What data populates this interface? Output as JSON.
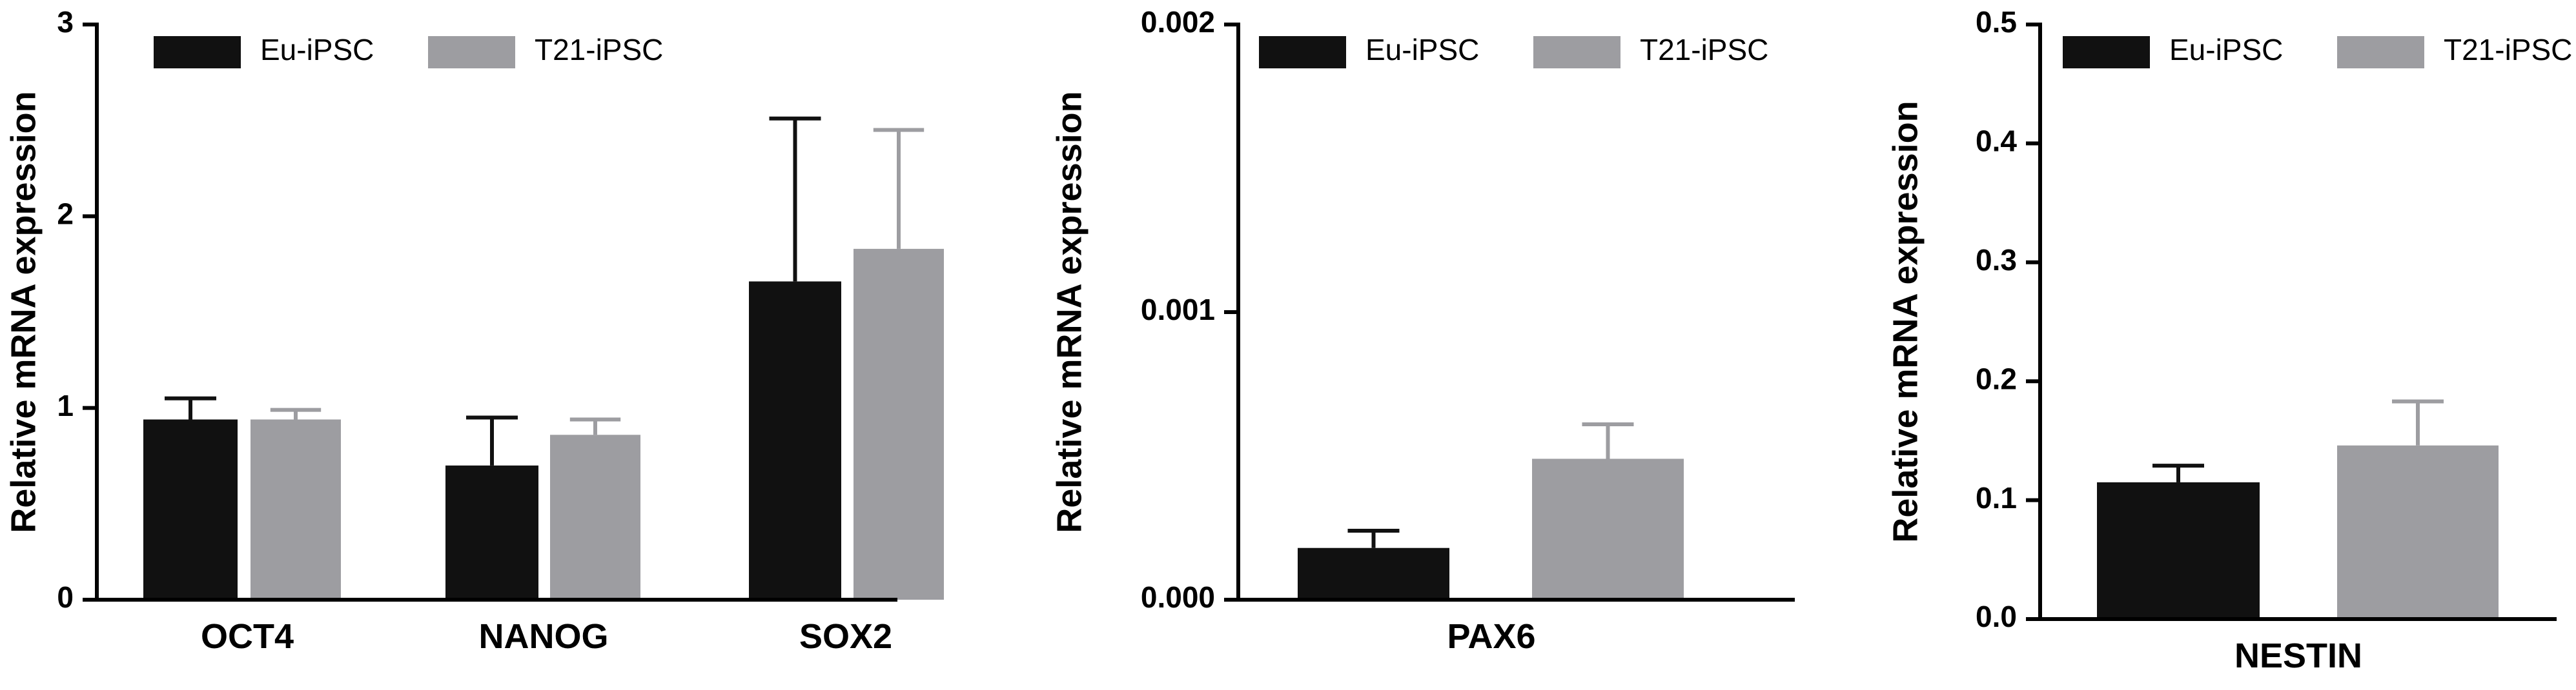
{
  "chart_data": [
    {
      "type": "bar",
      "ylabel": "Relative mRNA expression",
      "ylim": [
        0,
        3
      ],
      "yticks": [
        "0",
        "1",
        "2",
        "3"
      ],
      "categories": [
        "OCT4",
        "NANOG",
        "SOX2"
      ],
      "series": [
        {
          "name": "Eu-iPSC",
          "color": "#111111",
          "values": [
            0.94,
            0.7,
            1.66
          ],
          "errors": [
            0.11,
            0.25,
            0.85
          ]
        },
        {
          "name": "T21-iPSC",
          "color": "#9d9da1",
          "values": [
            0.94,
            0.86,
            1.83
          ],
          "errors": [
            0.05,
            0.08,
            0.62
          ]
        }
      ],
      "legend": "top-left"
    },
    {
      "type": "bar",
      "ylabel": "Relative mRNA expression",
      "ylim": [
        0,
        0.002
      ],
      "yticks": [
        "0.000",
        "0.001",
        "0.002"
      ],
      "categories": [
        "PAX6"
      ],
      "series": [
        {
          "name": "Eu-iPSC",
          "color": "#111111",
          "values": [
            0.00018
          ],
          "errors": [
            6e-05
          ]
        },
        {
          "name": "T21-iPSC",
          "color": "#9d9da1",
          "values": [
            0.00049
          ],
          "errors": [
            0.00012
          ]
        }
      ],
      "legend": "top-left"
    },
    {
      "type": "bar",
      "ylabel": "Relative mRNA expression",
      "ylim": [
        0,
        0.5
      ],
      "yticks": [
        "0.0",
        "0.1",
        "0.2",
        "0.3",
        "0.4",
        "0.5"
      ],
      "categories": [
        "NESTIN"
      ],
      "series": [
        {
          "name": "Eu-iPSC",
          "color": "#111111",
          "values": [
            0.115
          ],
          "errors": [
            0.014
          ]
        },
        {
          "name": "T21-iPSC",
          "color": "#9d9da1",
          "values": [
            0.146
          ],
          "errors": [
            0.037
          ]
        }
      ],
      "legend": "top-left"
    }
  ]
}
